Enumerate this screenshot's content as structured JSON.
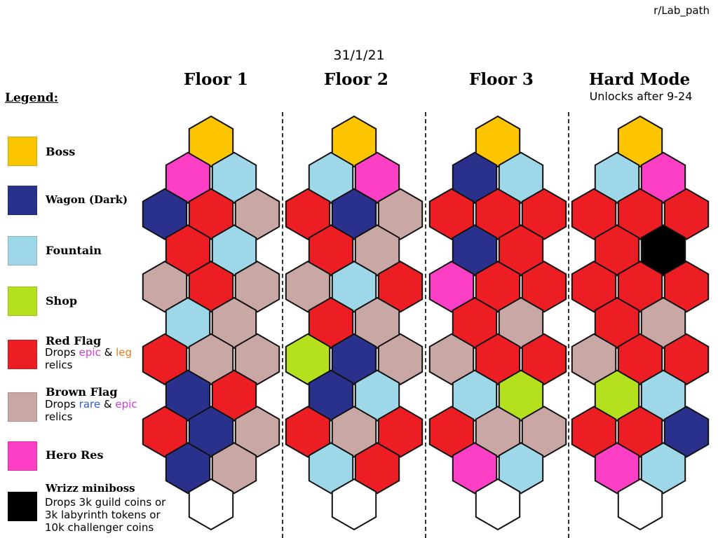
{
  "source": "r/Lab_path",
  "date": "31/1/21",
  "legend": {
    "title": "Legend:",
    "items": [
      {
        "key": "boss",
        "label": "Boss",
        "color": "#fcc500",
        "desc_parts": []
      },
      {
        "key": "wagon",
        "label": "Wagon (Dark)",
        "color": "#29318d",
        "desc_parts": []
      },
      {
        "key": "fountain",
        "label": "Fountain",
        "color": "#9ed8e8",
        "desc_parts": []
      },
      {
        "key": "shop",
        "label": "Shop",
        "color": "#b5e01e",
        "desc_parts": []
      },
      {
        "key": "red",
        "label": "Red Flag",
        "color": "#ec1e24",
        "desc_parts": [
          {
            "text": "Drops ",
            "color": "#000"
          },
          {
            "text": "epic",
            "color": "#c93ed6"
          },
          {
            "text": " & ",
            "color": "#000"
          },
          {
            "text": "leg",
            "color": "#f07b1a"
          }
        ],
        "desc_line2": "relics"
      },
      {
        "key": "brown",
        "label": "Brown Flag",
        "color": "#c8a7a5",
        "desc_parts": [
          {
            "text": "Drops ",
            "color": "#000"
          },
          {
            "text": "rare",
            "color": "#2f5fd6"
          },
          {
            "text": " & ",
            "color": "#000"
          },
          {
            "text": "epic",
            "color": "#c93ed6"
          }
        ],
        "desc_line2": "relics"
      },
      {
        "key": "hero",
        "label": "Hero Res",
        "color": "#fc3fc4",
        "desc_parts": []
      },
      {
        "key": "wrizz",
        "label": "Wrizz miniboss",
        "color": "#000000",
        "desc_lines": [
          "Drops 3k guild coins or",
          "3k labyrinth tokens or",
          "10k challenger coins"
        ]
      }
    ]
  },
  "floors": [
    {
      "title": "Floor 1",
      "subtitle": "",
      "rows": [
        [
          "B"
        ],
        [
          "P",
          "F"
        ],
        [
          "W",
          "R",
          "N"
        ],
        [
          "R",
          "F"
        ],
        [
          "N",
          "R",
          "N"
        ],
        [
          "F",
          "N"
        ],
        [
          "R",
          "N",
          "N"
        ],
        [
          "W",
          "R"
        ],
        [
          "R",
          "W",
          "N"
        ],
        [
          "W",
          "N"
        ],
        [
          "E"
        ]
      ]
    },
    {
      "title": "Floor 2",
      "subtitle": "",
      "rows": [
        [
          "B"
        ],
        [
          "F",
          "P"
        ],
        [
          "R",
          "W",
          "N"
        ],
        [
          "R",
          "N"
        ],
        [
          "N",
          "F",
          "R"
        ],
        [
          "R",
          "N"
        ],
        [
          "S",
          "W",
          "N"
        ],
        [
          "W",
          "F"
        ],
        [
          "R",
          "N",
          "R"
        ],
        [
          "F",
          "R"
        ],
        [
          "E"
        ]
      ]
    },
    {
      "title": "Floor 3",
      "subtitle": "",
      "rows": [
        [
          "B"
        ],
        [
          "W",
          "F"
        ],
        [
          "R",
          "R",
          "R"
        ],
        [
          "W",
          "R"
        ],
        [
          "P",
          "R",
          "R"
        ],
        [
          "R",
          "N"
        ],
        [
          "N",
          "R",
          "R"
        ],
        [
          "F",
          "S"
        ],
        [
          "R",
          "N",
          "N"
        ],
        [
          "P",
          "F"
        ],
        [
          "E"
        ]
      ]
    },
    {
      "title": "Hard Mode",
      "subtitle": "Unlocks after 9-24",
      "rows": [
        [
          "B"
        ],
        [
          "F",
          "P"
        ],
        [
          "R",
          "R",
          "R"
        ],
        [
          "R",
          "K"
        ],
        [
          "R",
          "R",
          "R"
        ],
        [
          "R",
          "N"
        ],
        [
          "N",
          "R",
          "R"
        ],
        [
          "S",
          "F"
        ],
        [
          "R",
          "R",
          "W"
        ],
        [
          "P",
          "F"
        ],
        [
          "E"
        ]
      ]
    }
  ],
  "tile_colors": {
    "B": "#fcc500",
    "W": "#29318d",
    "F": "#9ed8e8",
    "S": "#b5e01e",
    "R": "#ec1e24",
    "N": "#c8a7a5",
    "P": "#fc3fc4",
    "K": "#000000",
    "E": "#ffffff"
  },
  "tile_names": {
    "B": "boss",
    "W": "wagon",
    "F": "fountain",
    "S": "shop",
    "R": "red-flag",
    "N": "brown-flag",
    "P": "hero-res",
    "K": "wrizz-miniboss",
    "E": "empty"
  }
}
